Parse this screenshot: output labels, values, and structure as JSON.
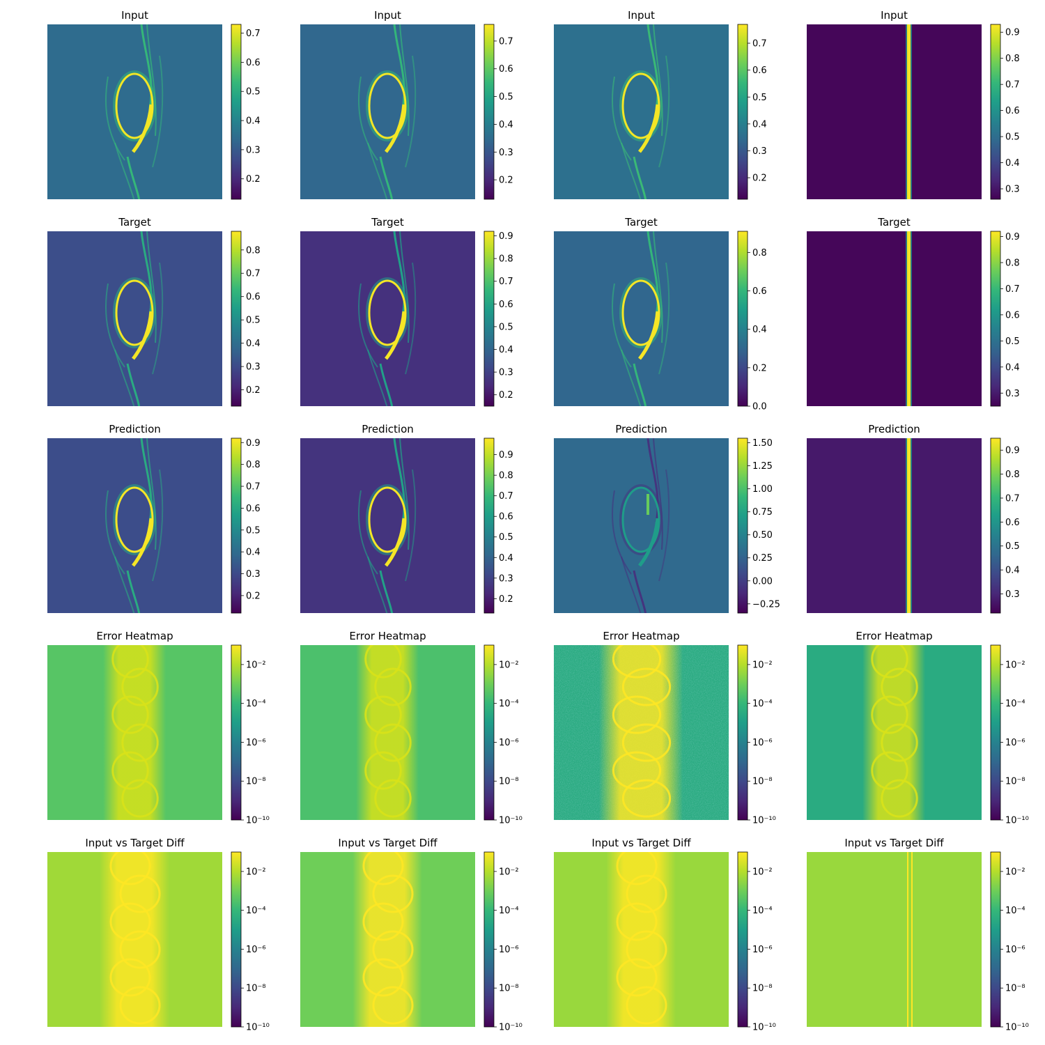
{
  "chart_data": {
    "type": "heatmap",
    "layout": {
      "rows": 5,
      "cols": 4
    },
    "colormap": "viridis",
    "colormap_stops": [
      "#440154",
      "#482878",
      "#3e4989",
      "#31688e",
      "#26828e",
      "#1f9e89",
      "#35b779",
      "#6ece58",
      "#b5de2b",
      "#fde725"
    ],
    "panels": [
      {
        "title": "Input",
        "scale": "linear",
        "range": [
          0.13,
          0.73
        ],
        "ticks": [
          0.2,
          0.3,
          0.4,
          0.5,
          0.6,
          0.7
        ],
        "tick_labels": [
          "0.2",
          "0.3",
          "0.4",
          "0.5",
          "0.6",
          "0.7"
        ],
        "background_value": 0.34,
        "pattern": "vortex",
        "peak": 0.72
      },
      {
        "title": "Input",
        "scale": "linear",
        "range": [
          0.13,
          0.76
        ],
        "ticks": [
          0.2,
          0.3,
          0.4,
          0.5,
          0.6,
          0.7
        ],
        "tick_labels": [
          "0.2",
          "0.3",
          "0.4",
          "0.5",
          "0.6",
          "0.7"
        ],
        "background_value": 0.34,
        "pattern": "vortex",
        "peak": 0.75
      },
      {
        "title": "Input",
        "scale": "linear",
        "range": [
          0.12,
          0.77
        ],
        "ticks": [
          0.2,
          0.3,
          0.4,
          0.5,
          0.6,
          0.7
        ],
        "tick_labels": [
          "0.2",
          "0.3",
          "0.4",
          "0.5",
          "0.6",
          "0.7"
        ],
        "background_value": 0.36,
        "pattern": "vortex",
        "peak": 0.76
      },
      {
        "title": "Input",
        "scale": "linear",
        "range": [
          0.26,
          0.93
        ],
        "ticks": [
          0.3,
          0.4,
          0.5,
          0.6,
          0.7,
          0.8,
          0.9
        ],
        "tick_labels": [
          "0.3",
          "0.4",
          "0.5",
          "0.6",
          "0.7",
          "0.8",
          "0.9"
        ],
        "background_value": 0.27,
        "pattern": "stripe",
        "peak": 0.92
      },
      {
        "title": "Target",
        "scale": "linear",
        "range": [
          0.13,
          0.88
        ],
        "ticks": [
          0.2,
          0.3,
          0.4,
          0.5,
          0.6,
          0.7,
          0.8
        ],
        "tick_labels": [
          "0.2",
          "0.3",
          "0.4",
          "0.5",
          "0.6",
          "0.7",
          "0.8"
        ],
        "background_value": 0.31,
        "pattern": "vortex",
        "peak": 0.87
      },
      {
        "title": "Target",
        "scale": "linear",
        "range": [
          0.15,
          0.92
        ],
        "ticks": [
          0.2,
          0.3,
          0.4,
          0.5,
          0.6,
          0.7,
          0.8,
          0.9
        ],
        "tick_labels": [
          "0.2",
          "0.3",
          "0.4",
          "0.5",
          "0.6",
          "0.7",
          "0.8",
          "0.9"
        ],
        "background_value": 0.26,
        "pattern": "vortex",
        "peak": 0.91
      },
      {
        "title": "Target",
        "scale": "linear",
        "range": [
          0.0,
          0.91
        ],
        "ticks": [
          0.0,
          0.2,
          0.4,
          0.6,
          0.8
        ],
        "tick_labels": [
          "0.0",
          "0.2",
          "0.4",
          "0.6",
          "0.8"
        ],
        "background_value": 0.3,
        "pattern": "vortex",
        "peak": 0.9
      },
      {
        "title": "Target",
        "scale": "linear",
        "range": [
          0.25,
          0.92
        ],
        "ticks": [
          0.3,
          0.4,
          0.5,
          0.6,
          0.7,
          0.8,
          0.9
        ],
        "tick_labels": [
          "0.3",
          "0.4",
          "0.5",
          "0.6",
          "0.7",
          "0.8",
          "0.9"
        ],
        "background_value": 0.26,
        "pattern": "stripe",
        "peak": 0.91
      },
      {
        "title": "Prediction",
        "scale": "linear",
        "range": [
          0.12,
          0.92
        ],
        "ticks": [
          0.2,
          0.3,
          0.4,
          0.5,
          0.6,
          0.7,
          0.8,
          0.9
        ],
        "tick_labels": [
          "0.2",
          "0.3",
          "0.4",
          "0.5",
          "0.6",
          "0.7",
          "0.8",
          "0.9"
        ],
        "background_value": 0.31,
        "pattern": "vortex",
        "peak": 0.91
      },
      {
        "title": "Prediction",
        "scale": "linear",
        "range": [
          0.13,
          0.98
        ],
        "ticks": [
          0.2,
          0.3,
          0.4,
          0.5,
          0.6,
          0.7,
          0.8,
          0.9
        ],
        "tick_labels": [
          "0.2",
          "0.3",
          "0.4",
          "0.5",
          "0.6",
          "0.7",
          "0.8",
          "0.9"
        ],
        "background_value": 0.26,
        "pattern": "vortex",
        "peak": 0.97
      },
      {
        "title": "Prediction",
        "scale": "linear",
        "range": [
          -0.35,
          1.55
        ],
        "ticks": [
          -0.25,
          0.0,
          0.25,
          0.5,
          0.75,
          1.0,
          1.25,
          1.5
        ],
        "tick_labels": [
          "−0.25",
          "0.00",
          "0.25",
          "0.50",
          "0.75",
          "1.00",
          "1.25",
          "1.50"
        ],
        "background_value": 0.3,
        "pattern": "vortex-noisy",
        "peak": 1.1
      },
      {
        "title": "Prediction",
        "scale": "linear",
        "range": [
          0.22,
          0.95
        ],
        "ticks": [
          0.3,
          0.4,
          0.5,
          0.6,
          0.7,
          0.8,
          0.9
        ],
        "tick_labels": [
          "0.3",
          "0.4",
          "0.5",
          "0.6",
          "0.7",
          "0.8",
          "0.9"
        ],
        "background_value": 0.27,
        "pattern": "stripe",
        "peak": 0.94
      },
      {
        "title": "Error Heatmap",
        "scale": "log",
        "range": [
          -10,
          -1
        ],
        "ticks": [
          -2,
          -4,
          -6,
          -8,
          -10
        ],
        "tick_labels": [
          "10⁻²",
          "10⁻⁴",
          "10⁻⁶",
          "10⁻⁸",
          "10⁻¹⁰"
        ],
        "background_value": -3.4,
        "pattern": "error",
        "peak": -1.2
      },
      {
        "title": "Error Heatmap",
        "scale": "log",
        "range": [
          -10,
          -1
        ],
        "ticks": [
          -2,
          -4,
          -6,
          -8,
          -10
        ],
        "tick_labels": [
          "10⁻²",
          "10⁻⁴",
          "10⁻⁶",
          "10⁻⁸",
          "10⁻¹⁰"
        ],
        "background_value": -3.6,
        "pattern": "error",
        "peak": -1.2
      },
      {
        "title": "Error Heatmap",
        "scale": "log",
        "range": [
          -10,
          -1
        ],
        "ticks": [
          -2,
          -4,
          -6,
          -8,
          -10
        ],
        "tick_labels": [
          "10⁻²",
          "10⁻⁴",
          "10⁻⁶",
          "10⁻⁸",
          "10⁻¹⁰"
        ],
        "background_value": -4.5,
        "pattern": "error-wide",
        "peak": -1.0
      },
      {
        "title": "Error Heatmap",
        "scale": "log",
        "range": [
          -10,
          -1
        ],
        "ticks": [
          -2,
          -4,
          -6,
          -8,
          -10
        ],
        "tick_labels": [
          "10⁻²",
          "10⁻⁴",
          "10⁻⁶",
          "10⁻⁸",
          "10⁻¹⁰"
        ],
        "background_value": -4.5,
        "pattern": "error",
        "peak": -2.0
      },
      {
        "title": "Input vs Target Diff",
        "scale": "log",
        "range": [
          -10,
          -1
        ],
        "ticks": [
          -2,
          -4,
          -6,
          -8,
          -10
        ],
        "tick_labels": [
          "10⁻²",
          "10⁻⁴",
          "10⁻⁶",
          "10⁻⁸",
          "10⁻¹⁰"
        ],
        "background_value": -2.3,
        "pattern": "diff",
        "peak": -1.0
      },
      {
        "title": "Input vs Target Diff",
        "scale": "log",
        "range": [
          -10,
          -1
        ],
        "ticks": [
          -2,
          -4,
          -6,
          -8,
          -10
        ],
        "tick_labels": [
          "10⁻²",
          "10⁻⁴",
          "10⁻⁶",
          "10⁻⁸",
          "10⁻¹⁰"
        ],
        "background_value": -3.0,
        "pattern": "diff",
        "peak": -1.0
      },
      {
        "title": "Input vs Target Diff",
        "scale": "log",
        "range": [
          -10,
          -1
        ],
        "ticks": [
          -2,
          -4,
          -6,
          -8,
          -10
        ],
        "tick_labels": [
          "10⁻²",
          "10⁻⁴",
          "10⁻⁶",
          "10⁻⁸",
          "10⁻¹⁰"
        ],
        "background_value": -2.4,
        "pattern": "diff",
        "peak": -1.0
      },
      {
        "title": "Input vs Target Diff",
        "scale": "log",
        "range": [
          -10,
          -1
        ],
        "ticks": [
          -2,
          -4,
          -6,
          -8,
          -10
        ],
        "tick_labels": [
          "10⁻²",
          "10⁻⁴",
          "10⁻⁶",
          "10⁻⁸",
          "10⁻¹⁰"
        ],
        "background_value": -2.4,
        "pattern": "diff-stripe",
        "peak": -1.7
      }
    ]
  }
}
